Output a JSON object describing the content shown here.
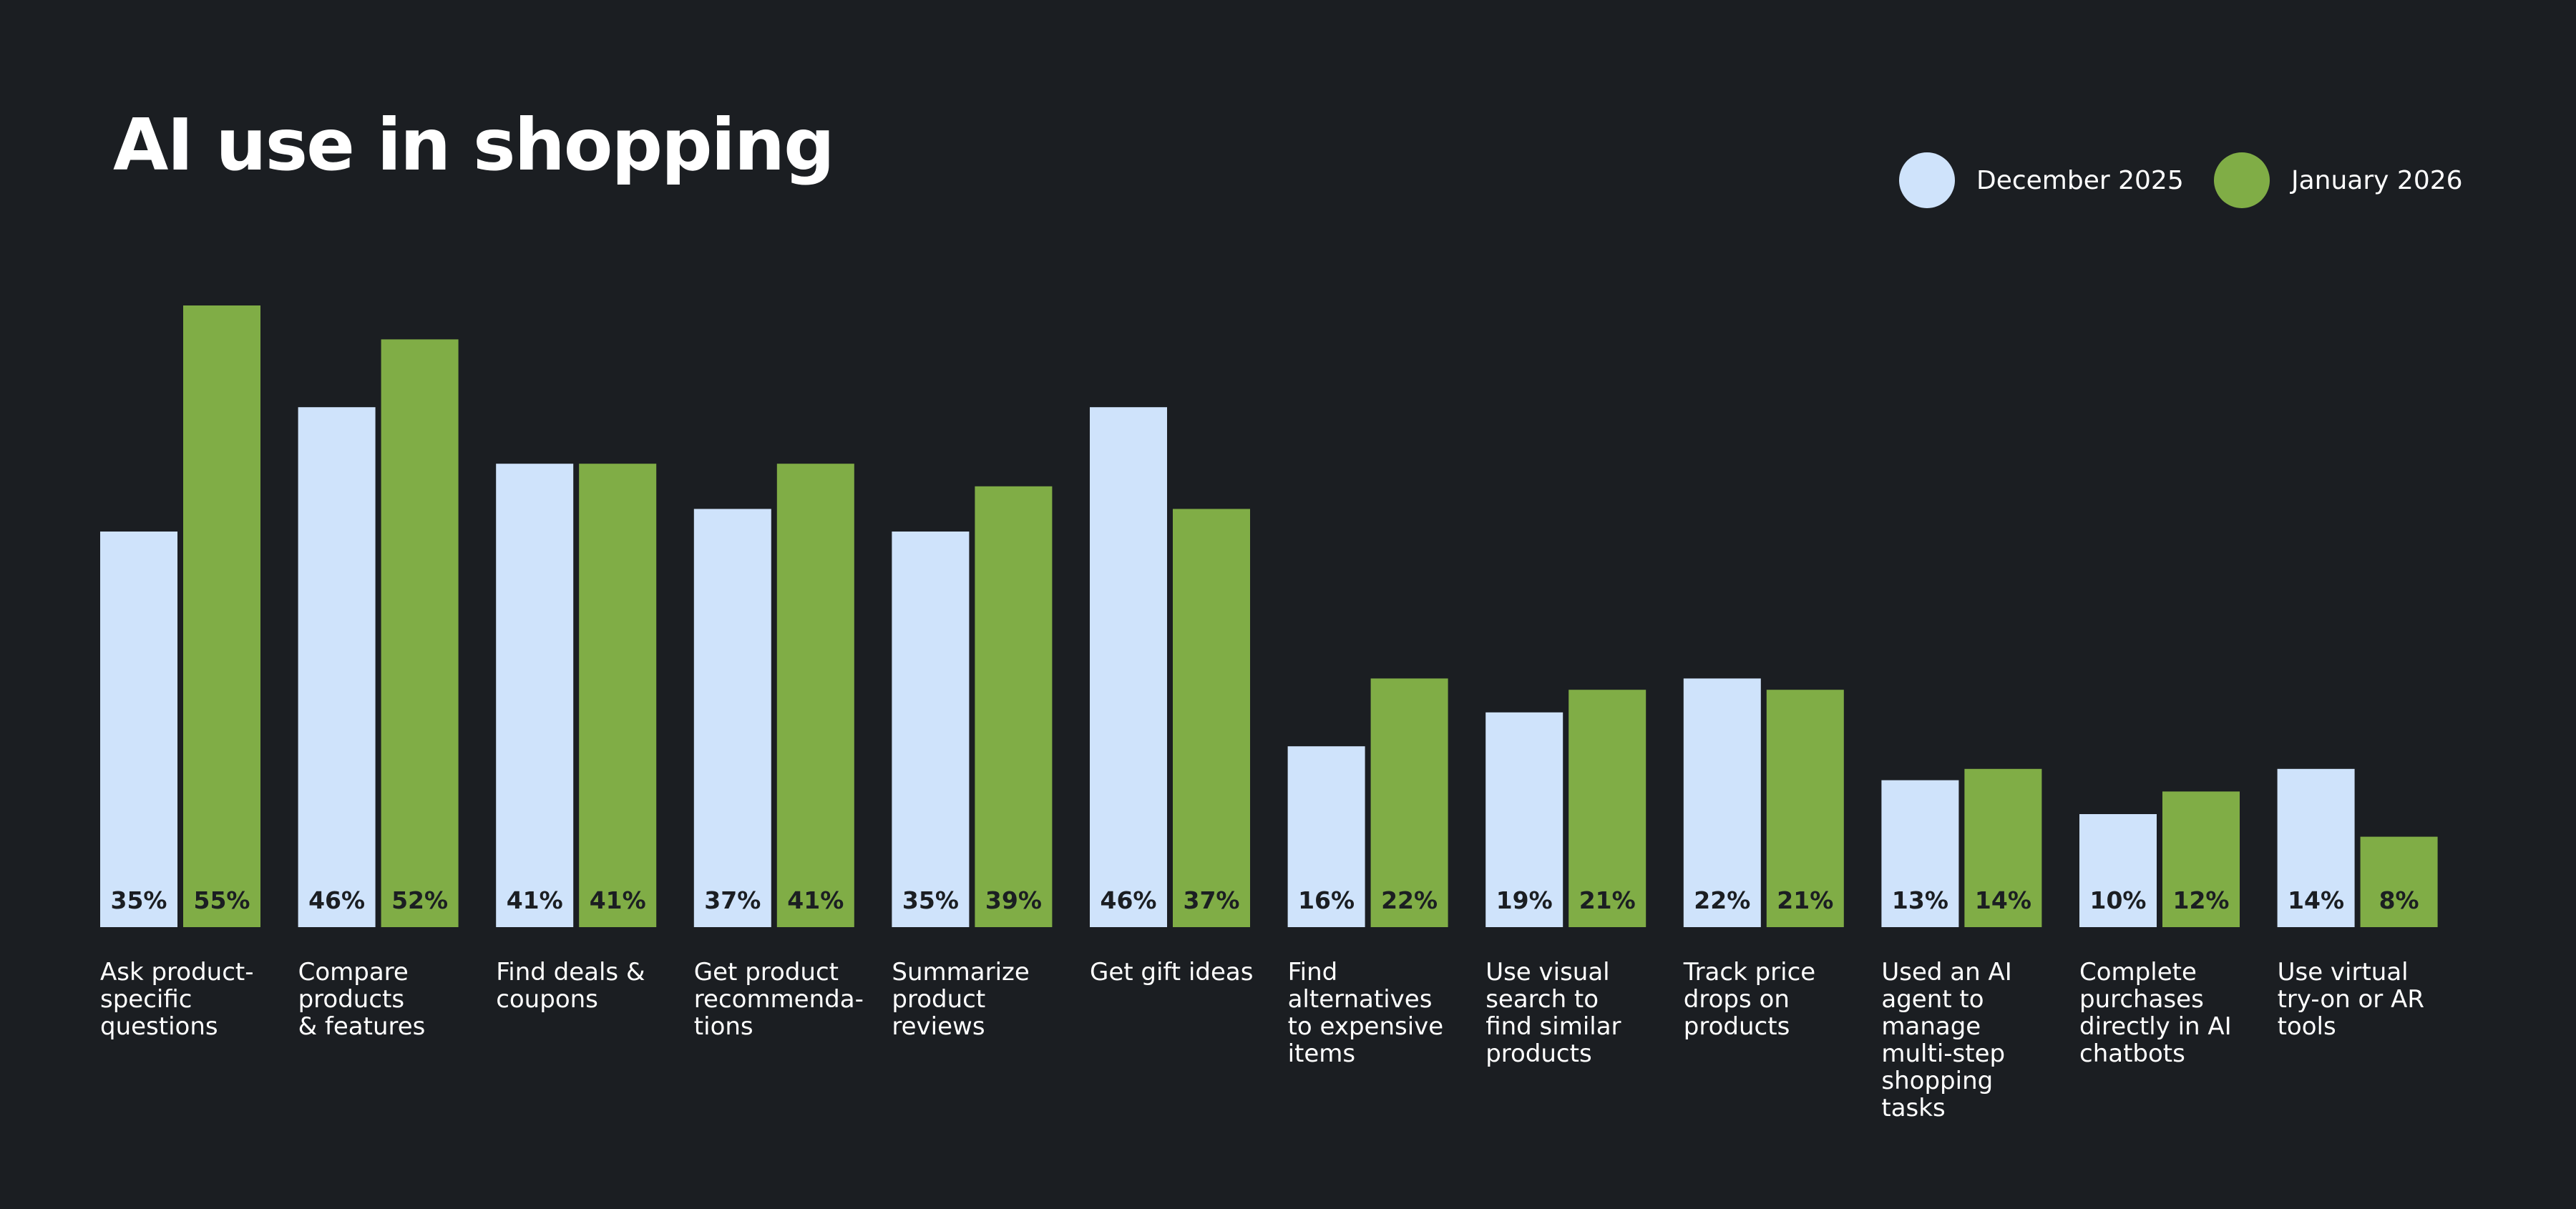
{
  "title": "AI use in shopping",
  "colors": {
    "background": "#1b1e22",
    "dec": "#cfe3fb",
    "jan": "#80ad46",
    "text": "#ffffff",
    "label_dark": "#1b1e22"
  },
  "legend": [
    {
      "label": "December 2025",
      "color": "#cfe3fb"
    },
    {
      "label": "January 2026",
      "color": "#80ad46"
    }
  ],
  "chart_data": {
    "type": "bar",
    "title": "AI use in shopping",
    "xlabel": "",
    "ylabel": "",
    "grid": false,
    "legend_position": "top-right",
    "categories": [
      [
        "Ask product-",
        "specific",
        "questions"
      ],
      [
        "Compare",
        "products",
        "& features"
      ],
      [
        "Find deals &",
        "coupons"
      ],
      [
        "Get product",
        "recommenda-",
        "tions"
      ],
      [
        "Summarize",
        "product",
        "reviews"
      ],
      [
        "Get gift ideas"
      ],
      [
        "Find",
        "alternatives",
        "to expensive",
        "items"
      ],
      [
        "Use visual",
        "search to",
        "find similar",
        "products"
      ],
      [
        "Track price",
        "drops on",
        "products"
      ],
      [
        "Used an AI",
        "agent to",
        "manage",
        "multi-step",
        "shopping",
        "tasks"
      ],
      [
        "Complete",
        "purchases",
        "directly in AI",
        "chatbots"
      ],
      [
        "Use virtual",
        "try-on or AR",
        "tools"
      ]
    ],
    "series": [
      {
        "name": "December 2025",
        "values": [
          35,
          46,
          41,
          37,
          35,
          46,
          16,
          19,
          22,
          13,
          10,
          14
        ],
        "labels": [
          "35%",
          "46%",
          "41%",
          "37%",
          "35%",
          "46%",
          "16%",
          "19%",
          "22%",
          "13%",
          "10%",
          "14%"
        ]
      },
      {
        "name": "January 2026",
        "values": [
          55,
          52,
          41,
          41,
          39,
          37,
          22,
          21,
          21,
          14,
          12,
          8
        ],
        "labels": [
          "55%",
          "52%",
          "41%",
          "41%",
          "39%",
          "37%",
          "22%",
          "21%",
          "21%",
          "14%",
          "12%",
          "8%"
        ]
      }
    ]
  }
}
